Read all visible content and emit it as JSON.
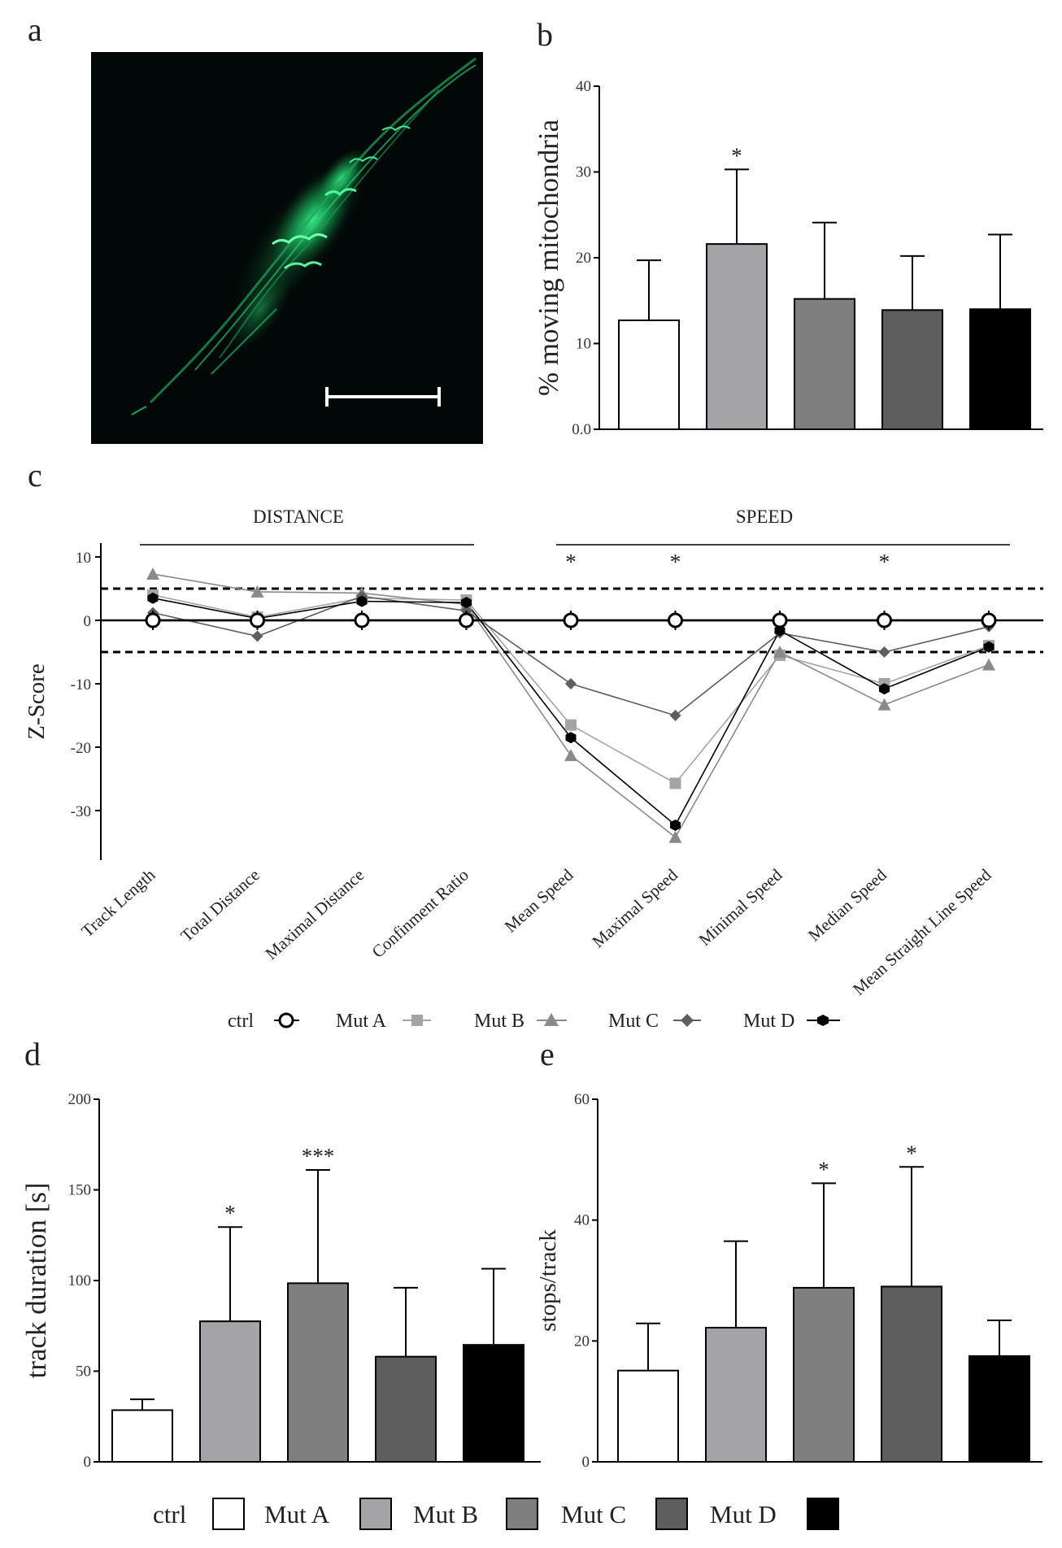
{
  "panels": {
    "a": "a",
    "b": "b",
    "c": "c",
    "d": "d",
    "e": "e"
  },
  "colors": {
    "ctrl": "#ffffff",
    "mutA": "#a4a4a8",
    "mutB": "#7f7f7f",
    "mutC": "#5e5e5e",
    "mutD": "#000000",
    "micro_bg": "#020807",
    "mito": "#27e07c"
  },
  "legend_c": [
    "ctrl",
    "Mut A",
    "Mut B",
    "Mut C",
    "Mut D"
  ],
  "legend_bottom": [
    "ctrl",
    "Mut A",
    "Mut B",
    "Mut C",
    "Mut D"
  ],
  "micrograph": {
    "content": "fluorescence micrograph with scale bar",
    "icon": "micrograph-image"
  },
  "chart_data": [
    {
      "type": "bar",
      "panel": "b",
      "ylabel": "% moving mitochondria",
      "ylim": [
        0,
        40
      ],
      "yticks": [
        "0.0",
        "10",
        "20",
        "30",
        "40"
      ],
      "categories": [
        "ctrl",
        "Mut A",
        "Mut B",
        "Mut C",
        "Mut D"
      ],
      "values": [
        12.7,
        21.6,
        15.2,
        13.9,
        14.0
      ],
      "errors": [
        7.0,
        8.7,
        8.9,
        6.3,
        8.7
      ],
      "significance": [
        "",
        "*",
        "",
        "",
        ""
      ]
    },
    {
      "type": "line",
      "panel": "c",
      "ylabel": "Z-Score",
      "ylim": [
        -37,
        12
      ],
      "yticks": [
        "10",
        "0",
        "-10",
        "-20",
        "-30"
      ],
      "groups": [
        {
          "label": "DISTANCE"
        },
        {
          "label": "SPEED"
        }
      ],
      "threshold_lines": [
        5,
        -5
      ],
      "categories": [
        "Track Length",
        "Total Distance",
        "Maximal Distance",
        "Confinment Ratio",
        "Mean Speed",
        "Maximal Speed",
        "Minimal Speed",
        "Median Speed",
        "Mean Straight Line Speed"
      ],
      "significance": [
        "",
        "",
        "",
        "",
        "*",
        "*",
        "",
        "*",
        ""
      ],
      "series": [
        {
          "name": "ctrl",
          "marker": "circle",
          "values": [
            0,
            0,
            0,
            0,
            0,
            0,
            0,
            0,
            0
          ]
        },
        {
          "name": "Mut A",
          "marker": "square",
          "values": [
            4,
            0.5,
            3.5,
            3.2,
            -16.5,
            -25.7,
            -5.5,
            -10,
            -4
          ]
        },
        {
          "name": "Mut B",
          "marker": "triangle",
          "values": [
            7.3,
            4.5,
            4.3,
            2.5,
            -21.3,
            -34.2,
            -5,
            -13.3,
            -7
          ]
        },
        {
          "name": "Mut C",
          "marker": "diamond",
          "values": [
            1.2,
            -2.5,
            3.8,
            1.5,
            -10,
            -15,
            -2,
            -5,
            -1
          ]
        },
        {
          "name": "Mut D",
          "marker": "hexagon",
          "values": [
            3.5,
            0.3,
            3,
            2.8,
            -18.5,
            -32.3,
            -1.6,
            -10.8,
            -4.2
          ]
        }
      ]
    },
    {
      "type": "bar",
      "panel": "d",
      "ylabel": "track duration [s]",
      "ylim": [
        0,
        200
      ],
      "yticks": [
        "0",
        "50",
        "100",
        "150",
        "200"
      ],
      "categories": [
        "ctrl",
        "Mut A",
        "Mut B",
        "Mut C",
        "Mut D"
      ],
      "values": [
        28.5,
        77.5,
        98.5,
        58,
        64.5
      ],
      "errors": [
        6,
        52,
        62.5,
        38,
        42
      ],
      "significance": [
        "",
        "*",
        "***",
        "",
        ""
      ]
    },
    {
      "type": "bar",
      "panel": "e",
      "ylabel": "stops/track",
      "ylim": [
        0,
        60
      ],
      "yticks": [
        "0",
        "20",
        "40",
        "60"
      ],
      "categories": [
        "ctrl",
        "Mut A",
        "Mut B",
        "Mut C",
        "Mut D"
      ],
      "values": [
        15.1,
        22.2,
        28.8,
        29.0,
        17.5
      ],
      "errors": [
        7.8,
        14.3,
        17.3,
        19.8,
        5.9
      ],
      "significance": [
        "",
        "",
        "*",
        "*",
        ""
      ]
    }
  ]
}
